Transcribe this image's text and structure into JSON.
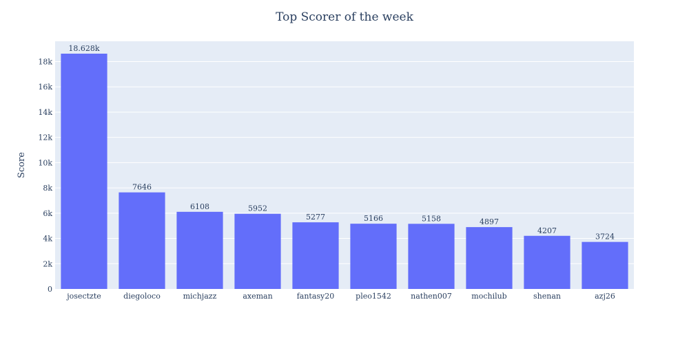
{
  "chart_data": {
    "type": "bar",
    "title": "Top Scorer of the week",
    "xlabel": "",
    "ylabel": "Score",
    "categories": [
      "josectzte",
      "diegoloco",
      "michjazz",
      "axeman",
      "fantasy20",
      "pleo1542",
      "nathen007",
      "mochilub",
      "shenan",
      "azj26"
    ],
    "values": [
      18628,
      7646,
      6108,
      5952,
      5277,
      5166,
      5158,
      4897,
      4207,
      3724
    ],
    "value_labels": [
      "18.628k",
      "7646",
      "6108",
      "5952",
      "5277",
      "5166",
      "5158",
      "4897",
      "4207",
      "3724"
    ],
    "ylim": [
      0,
      19608
    ],
    "yticks": [
      0,
      2000,
      4000,
      6000,
      8000,
      10000,
      12000,
      14000,
      16000,
      18000
    ],
    "ytick_labels": [
      "0",
      "2k",
      "4k",
      "6k",
      "8k",
      "10k",
      "12k",
      "14k",
      "16k",
      "18k"
    ],
    "grid": true,
    "legend": "none",
    "colors": {
      "bar": "#636efa",
      "plot_bg": "#e5ecf6",
      "grid": "#ffffff",
      "text": "#2a3f5f"
    }
  }
}
